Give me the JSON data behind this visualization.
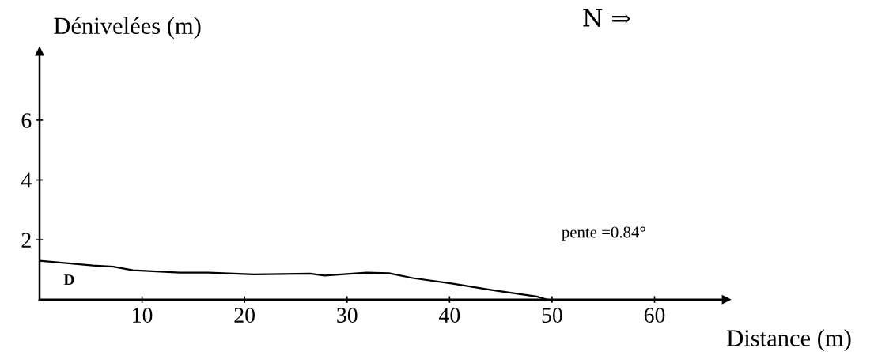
{
  "chart_data": {
    "type": "line",
    "xlabel": "Distance (m)",
    "ylabel": "Dénivelées (m)",
    "annotations": [
      "D",
      "pente =0.84°",
      "N ⇒"
    ],
    "x": [
      0,
      5.2,
      7.2,
      9.1,
      13.7,
      16.5,
      20.9,
      26.4,
      27.8,
      31.9,
      34.1,
      36.4,
      40.2,
      44.1,
      48.5,
      49.5
    ],
    "series": [
      {
        "color": "#000000",
        "values": [
          1.3,
          1.14,
          1.1,
          0.98,
          0.9,
          0.9,
          0.84,
          0.87,
          0.8,
          0.9,
          0.88,
          0.72,
          0.54,
          0.32,
          0.1,
          0
        ]
      }
    ],
    "xlim": [
      0,
      67
    ],
    "ylim": [
      0,
      8.3
    ],
    "xticks": [
      10,
      20,
      30,
      40,
      50,
      60
    ],
    "yticks": [
      2,
      4,
      6
    ],
    "grid": false,
    "marker": "none",
    "line_style": "solid"
  }
}
